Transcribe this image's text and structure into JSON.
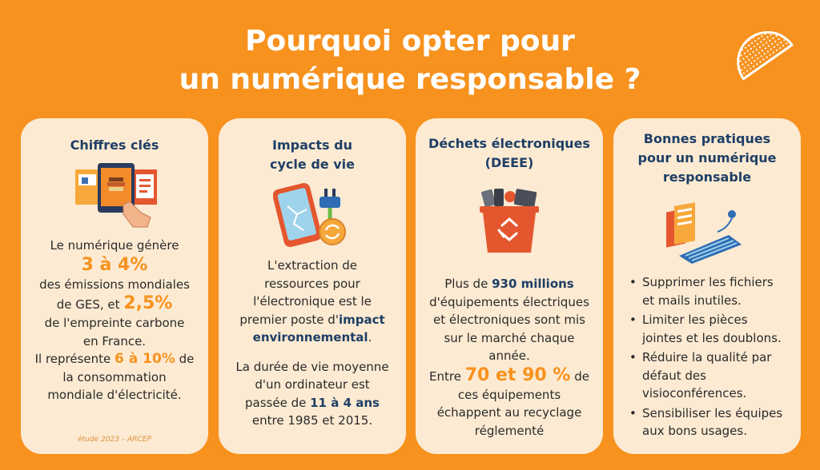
{
  "title": {
    "line1": "Pourquoi opter pour",
    "line2": "un numérique responsable ?"
  },
  "card1": {
    "heading": "Chiffres clés",
    "icon": "devices-hand-icon",
    "t1": "Le numérique génère",
    "b1": "3 à 4%",
    "t2": "des émissions mondiales",
    "t3": "de GES, et",
    "b2": "2,5%",
    "t4": "de l'empreinte carbone",
    "t5": "en France.",
    "t6": "Il représente",
    "b3": "6 à 10%",
    "t7": "de",
    "t8": "la consommation",
    "t9": "mondiale d'électricité.",
    "source": "étude 2023 – ARCEP"
  },
  "card2": {
    "heading1": "Impacts du",
    "heading2": "cycle de vie",
    "icon": "broken-phone-plug-icon",
    "p1a": "L'extraction de",
    "p1b": "ressources pour",
    "p1c": "l'électronique est le",
    "p1d": "premier poste d'",
    "p1bold1": "impact",
    "p1bold2": "environnemental",
    "p1e": ".",
    "p2a": "La durée de vie moyenne",
    "p2b": "d'un ordinateur est",
    "p2c": "passée de",
    "p2bold": "11 à 4 ans",
    "p2d": "entre 1985 et 2015."
  },
  "card3": {
    "heading1": "Déchets électroniques",
    "heading2": "(DEEE)",
    "icon": "recycle-bin-icon",
    "p1a": "Plus de",
    "p1bold": "930 millions",
    "p1b": "d'équipements électriques",
    "p1c": "et électroniques sont mis",
    "p1d": "sur le marché chaque",
    "p1e": "année.",
    "p2a": "Entre",
    "p2big": "70 et 90 %",
    "p2b": "de",
    "p2c": "ces équipements",
    "p2d": "échappent au recyclage",
    "p2e": "réglementé"
  },
  "card4": {
    "heading1": "Bonnes pratiques",
    "heading2": "pour un numérique",
    "heading3": "responsable",
    "icon": "folders-keyboard-icon",
    "bullet": "•",
    "items": [
      {
        "l1": "Supprimer les fichiers",
        "l2": "et mails inutiles."
      },
      {
        "l1": "Limiter les pièces",
        "l2": "jointes et les doublons."
      },
      {
        "l1": "Réduire la qualité par",
        "l2": "défaut des",
        "l3": "visioconférences."
      },
      {
        "l1": "Sensibiliser les équipes",
        "l2": "aux bons usages."
      }
    ]
  },
  "colors": {
    "background": "#F7921E",
    "card": "#FCEAD2",
    "heading": "#1E3F66",
    "accent": "#F7921E"
  }
}
